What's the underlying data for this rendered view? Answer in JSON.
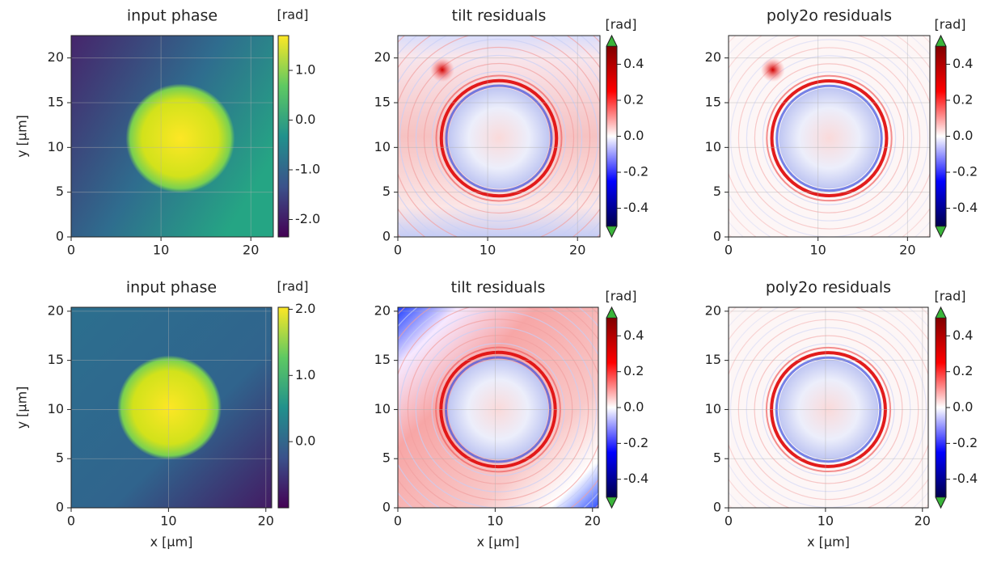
{
  "chart_data": [
    {
      "type": "image",
      "title": "input phase",
      "ylabel": "y [µm]",
      "xlim": [
        0,
        22.5
      ],
      "ylim": [
        0,
        22.5
      ],
      "xticks": [
        0,
        10,
        20
      ],
      "yticks": [
        0,
        5,
        10,
        15,
        20
      ],
      "grid": true,
      "colorbar": {
        "label": "[rad]",
        "colormap": "viridis",
        "lim": [
          -2.35,
          1.7
        ],
        "ticks": [
          {
            "value": 1,
            "label": "1.0"
          },
          {
            "value": 0,
            "label": "0.0"
          },
          {
            "value": -1,
            "label": "-1.0"
          },
          {
            "value": -2,
            "label": "-2.0"
          }
        ]
      }
    },
    {
      "type": "image",
      "title": "tilt residuals",
      "xlim": [
        0,
        22.5
      ],
      "ylim": [
        0,
        22.5
      ],
      "xticks": [
        0,
        10,
        20
      ],
      "yticks": [
        0,
        5,
        10,
        15,
        20
      ],
      "grid": true,
      "colorbar": {
        "label": "[rad]",
        "colormap": "seismic",
        "extend": "both",
        "lim": [
          -0.5,
          0.5
        ],
        "ticks": [
          0.4,
          0.2,
          {
            "value": 0,
            "label": "0.0"
          },
          -0.2,
          -0.4
        ]
      }
    },
    {
      "type": "image",
      "title": "poly2o residuals",
      "xlim": [
        0,
        22.5
      ],
      "ylim": [
        0,
        22.5
      ],
      "xticks": [
        0,
        10,
        20
      ],
      "yticks": [
        0,
        5,
        10,
        15,
        20
      ],
      "grid": true,
      "colorbar": {
        "label": "[rad]",
        "colormap": "seismic",
        "extend": "both",
        "lim": [
          -0.5,
          0.5
        ],
        "ticks": [
          0.4,
          0.2,
          {
            "value": 0,
            "label": "0.0"
          },
          -0.2,
          -0.4
        ]
      }
    },
    {
      "type": "image",
      "title": "input phase",
      "xlabel": "x [µm]",
      "ylabel": "y [µm]",
      "xlim": [
        0,
        20.6
      ],
      "ylim": [
        0,
        20.4
      ],
      "xticks": [
        0,
        10,
        20
      ],
      "yticks": [
        0,
        5,
        10,
        15,
        20
      ],
      "grid": true,
      "colorbar": {
        "label": "[rad]",
        "colormap": "viridis",
        "lim": [
          -1.0,
          2.03
        ],
        "ticks": [
          {
            "value": 2,
            "label": "2.0"
          },
          {
            "value": 1,
            "label": "1.0"
          },
          {
            "value": 0,
            "label": "0.0"
          }
        ]
      }
    },
    {
      "type": "image",
      "title": "tilt residuals",
      "xlabel": "x [µm]",
      "xlim": [
        0,
        20.6
      ],
      "ylim": [
        0,
        20.4
      ],
      "xticks": [
        0,
        10,
        20
      ],
      "yticks": [
        0,
        5,
        10,
        15,
        20
      ],
      "grid": true,
      "colorbar": {
        "label": "[rad]",
        "colormap": "seismic",
        "extend": "both",
        "lim": [
          -0.5,
          0.5
        ],
        "ticks": [
          0.4,
          0.2,
          {
            "value": 0,
            "label": "0.0"
          },
          -0.2,
          -0.4
        ]
      }
    },
    {
      "type": "image",
      "title": "poly2o residuals",
      "xlabel": "x [µm]",
      "xlim": [
        0,
        20.6
      ],
      "ylim": [
        0,
        20.4
      ],
      "xticks": [
        0,
        10,
        20
      ],
      "yticks": [
        0,
        5,
        10,
        15,
        20
      ],
      "grid": true,
      "colorbar": {
        "label": "[rad]",
        "colormap": "seismic",
        "extend": "both",
        "lim": [
          -0.5,
          0.5
        ],
        "ticks": [
          0.4,
          0.2,
          {
            "value": 0,
            "label": "0.0"
          },
          -0.2,
          -0.4
        ]
      }
    }
  ]
}
